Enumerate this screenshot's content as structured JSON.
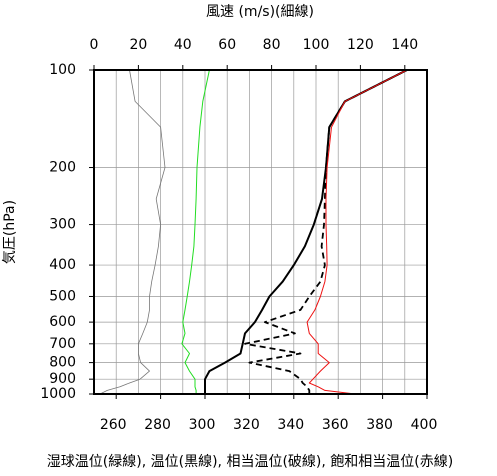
{
  "chart_data": {
    "type": "line",
    "title": "風速 (m/s)(細線)",
    "ylabel": "気圧(hPa)",
    "caption": "湿球温位(緑線), 温位(黒線), 相当温位(破線), 飽和相当温位(赤線)",
    "y": [
      1000,
      975,
      950,
      925,
      900,
      850,
      800,
      750,
      700,
      650,
      600,
      550,
      500,
      450,
      400,
      350,
      300,
      250,
      200,
      150,
      125,
      100
    ],
    "ylim": [
      1000,
      100
    ],
    "ylog": true,
    "yticks": [
      100,
      200,
      300,
      400,
      500,
      600,
      700,
      800,
      900,
      1000
    ],
    "xlim": [
      250,
      400
    ],
    "xticks": [
      260,
      280,
      300,
      320,
      340,
      360,
      380,
      400
    ],
    "xminorticks": [
      270,
      290,
      310,
      330,
      350,
      370,
      390
    ],
    "x2lim": [
      0,
      150
    ],
    "x2ticks": [
      0,
      20,
      40,
      60,
      80,
      100,
      120,
      140
    ],
    "grid": true,
    "series": [
      {
        "color": "#777777",
        "axis": "x2",
        "width": 0.8,
        "values": [
          2.7,
          6,
          11.7,
          16,
          20.7,
          25,
          21,
          20,
          20,
          22,
          24,
          25,
          25,
          26,
          27.5,
          29,
          30,
          28,
          32,
          30,
          18.5,
          16
        ]
      },
      {
        "color": "#22dd22",
        "width": 1,
        "values": [
          296,
          296,
          295.5,
          295.5,
          295.5,
          293,
          291,
          293,
          289.6,
          291,
          290,
          291,
          292,
          293,
          294,
          295,
          295.5,
          296,
          296.4,
          297.7,
          299,
          302
        ]
      },
      {
        "color": "#000000",
        "width": 2,
        "values": [
          300,
          300,
          300,
          300,
          300,
          302,
          309,
          316,
          317,
          318,
          322.5,
          325.7,
          329,
          335,
          340,
          345,
          349,
          352.7,
          354.5,
          356,
          363,
          391
        ]
      },
      {
        "color": "#000000",
        "width": 1.8,
        "dash": "6,4",
        "values": [
          347,
          347,
          346,
          344,
          343,
          338,
          320,
          343,
          318,
          340.5,
          327,
          343,
          347,
          352,
          354,
          352.5,
          353.6,
          354,
          354.5,
          356,
          363,
          391
        ]
      },
      {
        "color": "#ee1111",
        "width": 1,
        "values": [
          367.6,
          354,
          351,
          347,
          348.6,
          352,
          356,
          351,
          351,
          347,
          346,
          349.5,
          352,
          354,
          355,
          354.8,
          354.5,
          354.5,
          355,
          357,
          363,
          391
        ]
      }
    ]
  }
}
